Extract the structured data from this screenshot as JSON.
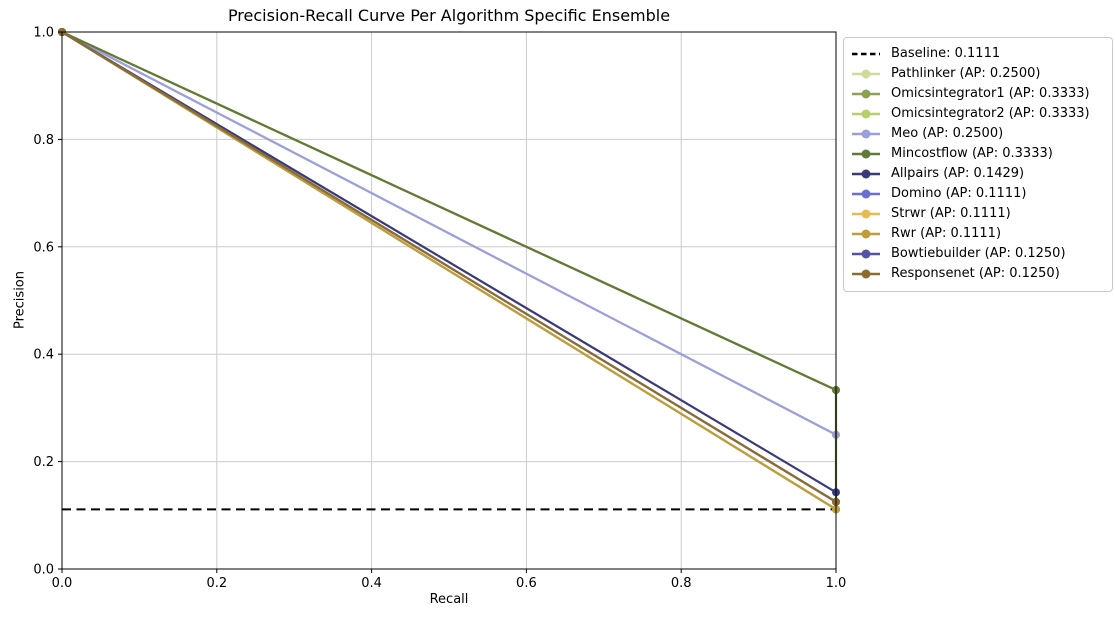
{
  "chart_data": {
    "type": "line",
    "title": "Precision-Recall Curve Per Algorithm Specific Ensemble",
    "xlabel": "Recall",
    "ylabel": "Precision",
    "xlim": [
      0.0,
      1.0
    ],
    "ylim": [
      0.0,
      1.0
    ],
    "xticks": [
      0.0,
      0.2,
      0.4,
      0.6,
      0.8,
      1.0
    ],
    "yticks": [
      0.0,
      0.2,
      0.4,
      0.6,
      0.8,
      1.0
    ],
    "grid": true,
    "legend_position": "outside-top-right",
    "baseline": {
      "label": "Baseline: 0.1111",
      "value": 0.1111,
      "color": "#000000",
      "style": "dashed"
    },
    "series": [
      {
        "name": "pathlinker",
        "label": "Pathlinker (AP: 0.2500)",
        "ap": 0.25,
        "color": "#cedb9c",
        "points": [
          [
            0.0,
            1.0
          ],
          [
            1.0,
            0.25
          ]
        ]
      },
      {
        "name": "omicsintegrator1",
        "label": "Omicsintegrator1 (AP: 0.3333)",
        "ap": 0.3333,
        "color": "#8ca252",
        "points": [
          [
            0.0,
            1.0
          ],
          [
            1.0,
            0.3333
          ]
        ]
      },
      {
        "name": "omicsintegrator2",
        "label": "Omicsintegrator2 (AP: 0.3333)",
        "ap": 0.3333,
        "color": "#b5cf6b",
        "points": [
          [
            0.0,
            1.0
          ],
          [
            1.0,
            0.3333
          ]
        ]
      },
      {
        "name": "meo",
        "label": "Meo (AP: 0.2500)",
        "ap": 0.25,
        "color": "#9c9ede",
        "points": [
          [
            0.0,
            1.0
          ],
          [
            1.0,
            0.25
          ]
        ]
      },
      {
        "name": "mincostflow",
        "label": "Mincostflow (AP: 0.3333)",
        "ap": 0.3333,
        "color": "#637939",
        "points": [
          [
            0.0,
            1.0
          ],
          [
            1.0,
            0.3333
          ],
          [
            1.0,
            0.1111
          ]
        ]
      },
      {
        "name": "allpairs",
        "label": "Allpairs (AP: 0.1429)",
        "ap": 0.1429,
        "color": "#393b79",
        "points": [
          [
            0.0,
            1.0
          ],
          [
            1.0,
            0.1429
          ]
        ]
      },
      {
        "name": "domino",
        "label": "Domino (AP: 0.1111)",
        "ap": 0.1111,
        "color": "#6b6ecf",
        "points": [
          [
            0.0,
            1.0
          ],
          [
            1.0,
            0.1111
          ]
        ]
      },
      {
        "name": "strwr",
        "label": "Strwr (AP: 0.1111)",
        "ap": 0.1111,
        "color": "#e7ba52",
        "points": [
          [
            0.0,
            1.0
          ],
          [
            1.0,
            0.1111
          ]
        ]
      },
      {
        "name": "rwr",
        "label": "Rwr (AP: 0.1111)",
        "ap": 0.1111,
        "color": "#bd9e39",
        "points": [
          [
            0.0,
            1.0
          ],
          [
            1.0,
            0.1111
          ]
        ]
      },
      {
        "name": "bowtiebuilder",
        "label": "Bowtiebuilder (AP: 0.1250)",
        "ap": 0.125,
        "color": "#5254a3",
        "points": [
          [
            0.0,
            1.0
          ],
          [
            1.0,
            0.125
          ]
        ]
      },
      {
        "name": "responsenet",
        "label": "Responsenet (AP: 0.1250)",
        "ap": 0.125,
        "color": "#8c6d31",
        "points": [
          [
            0.0,
            1.0
          ],
          [
            1.0,
            0.125
          ]
        ]
      }
    ],
    "colors": {
      "grid": "#cccccc",
      "spine": "#000000",
      "background": "#ffffff",
      "text": "#000000"
    }
  }
}
